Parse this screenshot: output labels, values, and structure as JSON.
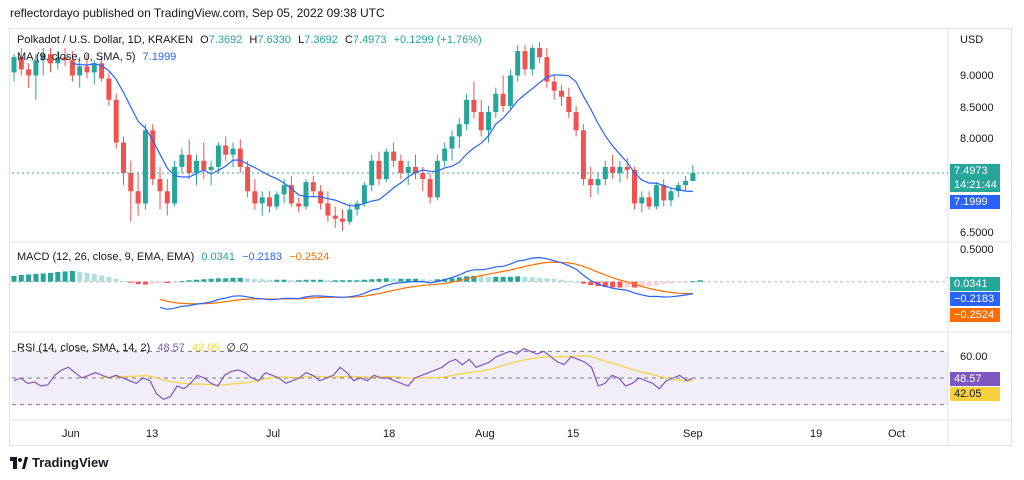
{
  "credit": "reflectordayo published on TradingView.com, Sep 05, 2022 09:38 UTC",
  "brand": "TradingView",
  "price_panel": {
    "symbol_text": "Polkadot / U.S. Dollar, 1D, KRAKEN",
    "ohlc": {
      "o_label": "O",
      "o": "7.3692",
      "h_label": "H",
      "h": "7.6330",
      "l_label": "L",
      "l": "7.3692",
      "c_label": "C",
      "c": "7.4973",
      "change": "+0.1299 (+1.76%)"
    },
    "ma_text": "MA (9, close, 0, SMA, 5)",
    "ma_value": "7.1999",
    "currency": "USD",
    "y_ticks": [
      "9.0000",
      "8.5000",
      "8.0000",
      "6.5000"
    ],
    "last_price": "7.4973",
    "countdown": "14:21:44",
    "ma_badge": "7.1999"
  },
  "macd_panel": {
    "label": "MACD (12, 26, close, 9, EMA, EMA)",
    "hist": "0.0341",
    "macd": "−0.2183",
    "signal": "−0.2524",
    "y_ticks": [
      "0.5000"
    ],
    "badges": [
      "0.0341",
      "−0.2183",
      "−0.2524"
    ]
  },
  "rsi_panel": {
    "label": "RSI (14, close, SMA, 14, 2)",
    "rsi": "48.57",
    "rsi_ma": "42.05",
    "extra": "∅ ∅",
    "y_ticks": [
      "60.00"
    ],
    "badges": [
      "48.57",
      "42.05"
    ]
  },
  "x_axis": [
    "Jun",
    "13",
    "Jul",
    "18",
    "Aug",
    "15",
    "Sep",
    "19",
    "Oct"
  ],
  "colors": {
    "up": "#26a69a",
    "down": "#ef5350",
    "ma": "#2962ff",
    "macd": "#2962ff",
    "signal": "#ff6d00",
    "rsi": "#7e57c2",
    "rsi_ma": "#f7d23e",
    "grid": "#e0e3eb"
  },
  "chart_data": [
    {
      "type": "candlestick",
      "title": "Polkadot / U.S. Dollar, 1D, KRAKEN",
      "x_range": [
        "2022-05-26",
        "2022-09-05"
      ],
      "ylim": [
        6.4,
        9.6
      ],
      "candles": [
        [
          9.15,
          9.45,
          9.0,
          9.4
        ],
        [
          9.4,
          9.55,
          9.1,
          9.2
        ],
        [
          9.2,
          9.3,
          8.9,
          9.1
        ],
        [
          9.1,
          9.45,
          8.7,
          9.35
        ],
        [
          9.35,
          9.55,
          9.1,
          9.45
        ],
        [
          9.45,
          9.55,
          9.15,
          9.3
        ],
        [
          9.3,
          9.5,
          9.2,
          9.4
        ],
        [
          9.4,
          9.55,
          9.25,
          9.35
        ],
        [
          9.35,
          9.5,
          9.0,
          9.1
        ],
        [
          9.1,
          9.4,
          8.9,
          9.25
        ],
        [
          9.25,
          9.45,
          9.05,
          9.15
        ],
        [
          9.15,
          9.35,
          8.95,
          9.3
        ],
        [
          9.3,
          9.4,
          9.0,
          9.05
        ],
        [
          9.05,
          9.15,
          8.6,
          8.7
        ],
        [
          8.7,
          8.8,
          7.9,
          8.0
        ],
        [
          8.0,
          8.1,
          7.3,
          7.5
        ],
        [
          7.5,
          7.7,
          6.7,
          7.2
        ],
        [
          7.2,
          7.5,
          6.8,
          7.0
        ],
        [
          7.0,
          8.3,
          6.9,
          8.2
        ],
        [
          8.2,
          8.3,
          7.3,
          7.4
        ],
        [
          7.4,
          7.6,
          6.9,
          7.2
        ],
        [
          7.2,
          7.4,
          6.8,
          7.0
        ],
        [
          7.0,
          7.7,
          6.95,
          7.6
        ],
        [
          7.6,
          7.9,
          7.5,
          7.8
        ],
        [
          7.8,
          8.05,
          7.4,
          7.5
        ],
        [
          7.5,
          7.8,
          7.3,
          7.7
        ],
        [
          7.7,
          8.0,
          7.4,
          7.55
        ],
        [
          7.55,
          7.7,
          7.3,
          7.6
        ],
        [
          7.6,
          8.0,
          7.5,
          7.95
        ],
        [
          7.95,
          8.1,
          7.7,
          7.8
        ],
        [
          7.8,
          8.0,
          7.6,
          7.9
        ],
        [
          7.9,
          8.05,
          7.5,
          7.6
        ],
        [
          7.6,
          7.7,
          7.1,
          7.2
        ],
        [
          7.2,
          7.4,
          6.9,
          7.0
        ],
        [
          7.0,
          7.2,
          6.8,
          7.1
        ],
        [
          7.1,
          7.2,
          6.85,
          6.95
        ],
        [
          6.95,
          7.2,
          6.9,
          7.15
        ],
        [
          7.15,
          7.4,
          7.0,
          7.3
        ],
        [
          7.3,
          7.45,
          6.95,
          7.0
        ],
        [
          7.0,
          7.1,
          6.85,
          6.95
        ],
        [
          6.95,
          7.4,
          6.9,
          7.35
        ],
        [
          7.35,
          7.45,
          7.1,
          7.2
        ],
        [
          7.2,
          7.3,
          6.9,
          7.0
        ],
        [
          7.0,
          7.2,
          6.7,
          6.8
        ],
        [
          6.8,
          6.95,
          6.6,
          6.75
        ],
        [
          6.75,
          6.9,
          6.55,
          6.7
        ],
        [
          6.7,
          7.0,
          6.65,
          6.9
        ],
        [
          6.9,
          7.05,
          6.8,
          7.0
        ],
        [
          7.0,
          7.35,
          6.95,
          7.3
        ],
        [
          7.3,
          7.8,
          7.2,
          7.7
        ],
        [
          7.7,
          7.85,
          7.3,
          7.4
        ],
        [
          7.4,
          7.9,
          7.35,
          7.85
        ],
        [
          7.85,
          8.0,
          7.6,
          7.7
        ],
        [
          7.7,
          7.8,
          7.4,
          7.5
        ],
        [
          7.5,
          7.7,
          7.3,
          7.6
        ],
        [
          7.6,
          7.8,
          7.4,
          7.5
        ],
        [
          7.5,
          7.6,
          7.2,
          7.4
        ],
        [
          7.4,
          7.5,
          7.0,
          7.1
        ],
        [
          7.1,
          7.8,
          7.05,
          7.7
        ],
        [
          7.7,
          8.0,
          7.6,
          7.9
        ],
        [
          7.9,
          8.2,
          7.7,
          8.1
        ],
        [
          8.1,
          8.4,
          7.9,
          8.3
        ],
        [
          8.3,
          8.8,
          8.2,
          8.7
        ],
        [
          8.7,
          9.0,
          8.4,
          8.5
        ],
        [
          8.5,
          8.7,
          8.1,
          8.2
        ],
        [
          8.2,
          8.6,
          8.0,
          8.5
        ],
        [
          8.5,
          8.9,
          8.4,
          8.8
        ],
        [
          8.8,
          9.1,
          8.5,
          8.6
        ],
        [
          8.6,
          9.2,
          8.55,
          9.1
        ],
        [
          9.1,
          9.6,
          9.0,
          9.5
        ],
        [
          9.5,
          9.6,
          9.1,
          9.2
        ],
        [
          9.2,
          9.6,
          9.1,
          9.55
        ],
        [
          9.55,
          9.65,
          9.3,
          9.4
        ],
        [
          9.4,
          9.55,
          8.9,
          9.0
        ],
        [
          9.0,
          9.1,
          8.7,
          8.85
        ],
        [
          8.85,
          8.95,
          8.6,
          8.75
        ],
        [
          8.75,
          8.9,
          8.4,
          8.5
        ],
        [
          8.5,
          8.6,
          8.1,
          8.2
        ],
        [
          8.2,
          8.3,
          7.3,
          7.4
        ],
        [
          7.4,
          7.6,
          7.1,
          7.3
        ],
        [
          7.3,
          7.5,
          7.15,
          7.4
        ],
        [
          7.4,
          7.7,
          7.3,
          7.6
        ],
        [
          7.6,
          7.8,
          7.4,
          7.5
        ],
        [
          7.5,
          7.7,
          7.35,
          7.6
        ],
        [
          7.6,
          7.75,
          7.4,
          7.55
        ],
        [
          7.55,
          7.6,
          6.9,
          7.0
        ],
        [
          7.0,
          7.2,
          6.85,
          7.1
        ],
        [
          7.1,
          7.2,
          6.9,
          6.95
        ],
        [
          6.95,
          7.35,
          6.9,
          7.3
        ],
        [
          7.3,
          7.4,
          6.95,
          7.05
        ],
        [
          7.05,
          7.25,
          6.95,
          7.2
        ],
        [
          7.2,
          7.35,
          7.1,
          7.3
        ],
        [
          7.3,
          7.45,
          7.2,
          7.37
        ],
        [
          7.37,
          7.63,
          7.37,
          7.5
        ]
      ],
      "ma": {
        "name": "MA (9, close, 0, SMA, 5)",
        "last": 7.1999
      }
    },
    {
      "type": "line",
      "title": "MACD (12, 26, close, 9, EMA, EMA)",
      "ylim": [
        -0.95,
        0.65
      ],
      "hist": [
        0.12,
        0.14,
        0.15,
        0.16,
        0.17,
        0.18,
        0.2,
        0.21,
        0.22,
        0.2,
        0.18,
        0.16,
        0.13,
        0.1,
        0.06,
        0.02,
        -0.02,
        -0.05,
        -0.06,
        -0.04,
        -0.03,
        -0.03,
        -0.02,
        0.01,
        0.03,
        0.04,
        0.05,
        0.06,
        0.07,
        0.07,
        0.08,
        0.08,
        0.07,
        0.06,
        0.05,
        0.04,
        0.04,
        0.04,
        0.03,
        0.03,
        0.04,
        0.04,
        0.04,
        0.03,
        0.03,
        0.03,
        0.03,
        0.03,
        0.04,
        0.05,
        0.06,
        0.07,
        0.06,
        0.06,
        0.06,
        0.06,
        0.05,
        0.04,
        0.05,
        0.06,
        0.07,
        0.09,
        0.11,
        0.12,
        0.11,
        0.1,
        0.1,
        0.1,
        0.1,
        0.11,
        0.1,
        0.09,
        0.08,
        0.07,
        0.06,
        0.04,
        0.02,
        0.0,
        -0.04,
        -0.07,
        -0.09,
        -0.11,
        -0.12,
        -0.12,
        -0.11,
        -0.12,
        -0.11,
        -0.09,
        -0.07,
        -0.05,
        -0.04,
        -0.02,
        -0.01,
        0.01,
        0.03
      ],
      "macd_last": -0.2183,
      "signal_last": -0.2524
    },
    {
      "type": "line",
      "title": "RSI (14, close, SMA, 14, 2)",
      "ylim": [
        20,
        80
      ],
      "rsi": [
        48,
        50,
        46,
        47,
        44,
        45,
        52,
        56,
        58,
        54,
        50,
        52,
        54,
        52,
        50,
        52,
        50,
        48,
        46,
        50,
        48,
        38,
        34,
        36,
        44,
        42,
        46,
        52,
        50,
        46,
        44,
        52,
        55,
        56,
        54,
        50,
        48,
        54,
        52,
        50,
        46,
        48,
        50,
        54,
        52,
        48,
        50,
        52,
        58,
        54,
        48,
        50,
        48,
        52,
        50,
        50,
        48,
        46,
        44,
        50,
        52,
        54,
        56,
        58,
        62,
        64,
        60,
        64,
        58,
        60,
        62,
        66,
        68,
        70,
        68,
        72,
        70,
        68,
        70,
        66,
        62,
        60,
        66,
        64,
        62,
        58,
        44,
        46,
        52,
        50,
        44,
        46,
        50,
        48,
        46,
        42,
        48,
        50,
        52,
        48,
        50
      ],
      "rsi_last": 48.57,
      "rsi_ma_last": 42.05
    }
  ]
}
